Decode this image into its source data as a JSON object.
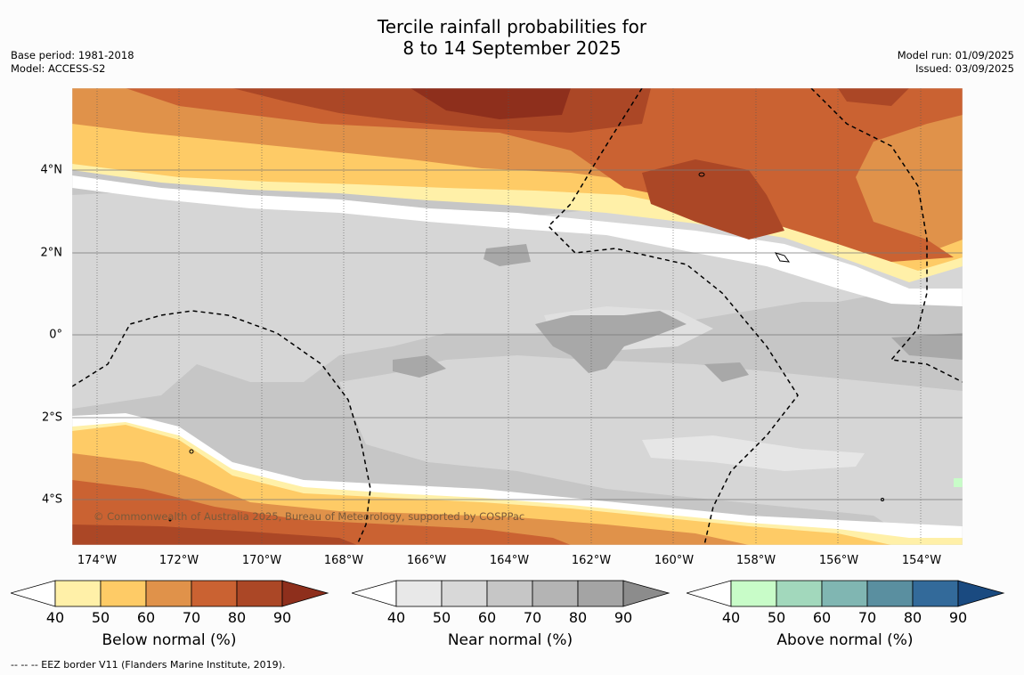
{
  "title_line1": "Tercile rainfall probabilities for",
  "title_line2": "8 to 14 September 2025",
  "meta_left": [
    "Base period: 1981-2018",
    "Model: ACCESS-S2"
  ],
  "meta_right": [
    "Model run: 01/09/2025",
    "Issued: 03/09/2025"
  ],
  "lat_ticks": [
    "4°N",
    "2°N",
    "0°",
    "2°S",
    "4°S"
  ],
  "lon_ticks": [
    "174°W",
    "172°W",
    "170°W",
    "168°W",
    "166°W",
    "164°W",
    "162°W",
    "160°W",
    "158°W",
    "156°W",
    "154°W"
  ],
  "copyright": "© Commonwealth of Australia 2025, Bureau of Meteorology, supported by COSPPac",
  "colorbars": [
    {
      "label": "Below normal (%)",
      "ticks": [
        "40",
        "50",
        "60",
        "70",
        "80",
        "90"
      ],
      "colors": [
        "#fff0a8",
        "#fecb66",
        "#e0924a",
        "#ca6232",
        "#ab4726",
        "#8e2f1c"
      ]
    },
    {
      "label": "Near normal (%)",
      "ticks": [
        "40",
        "50",
        "60",
        "70",
        "80",
        "90"
      ],
      "colors": [
        "#e8e8e8",
        "#d8d8d8",
        "#c6c6c6",
        "#b4b4b4",
        "#a4a4a4",
        "#8c8c8c"
      ]
    },
    {
      "label": "Above normal (%)",
      "ticks": [
        "40",
        "50",
        "60",
        "70",
        "80",
        "90"
      ],
      "colors": [
        "#c8fcc8",
        "#a2d8bc",
        "#80b6b2",
        "#5a8fa0",
        "#336a9a",
        "#1a4a80"
      ]
    }
  ],
  "footnote": "--  --  -- EEZ border V11 (Flanders Marine Institute, 2019)."
}
